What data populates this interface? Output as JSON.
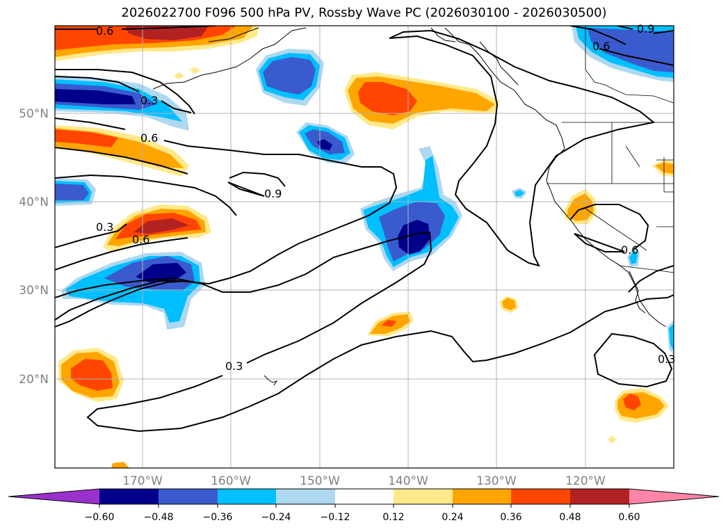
{
  "title": "2026022700 F096 500 hPa PV, Rossby Wave PC (2026030100 - 2026030500)",
  "lon_labels": [
    "170°W",
    "160°W",
    "150°W",
    "140°W",
    "130°W",
    "120°W"
  ],
  "lat_labels": [
    "50°N",
    "40°N",
    "30°N",
    "20°N"
  ],
  "colorbar": {
    "ticks": [
      "−0.60",
      "−0.48",
      "−0.36",
      "−0.24",
      "−0.12",
      "0.12",
      "0.24",
      "0.36",
      "0.48",
      "0.60"
    ],
    "colors": [
      "#9932cc",
      "#00008b",
      "#3a5bcd",
      "#00bfff",
      "#add8f0",
      "#ffffff",
      "#ffe98a",
      "#ffa500",
      "#ff4500",
      "#b22222",
      "#ff85a8"
    ]
  },
  "contour_labels": [
    "0.6",
    "0.9",
    "0.6",
    "0.3",
    "0.6",
    "0.9",
    "0.3",
    "0.6",
    "0.3",
    "0.6",
    "0.3"
  ],
  "colors": {
    "dark_blue": "#00008b",
    "mid_blue": "#3a5bcd",
    "cyan": "#00bfff",
    "light_blue": "#add8f0",
    "yellow": "#ffe98a",
    "orange": "#ffa500",
    "red_orange": "#ff4500",
    "dark_red": "#b22222"
  }
}
